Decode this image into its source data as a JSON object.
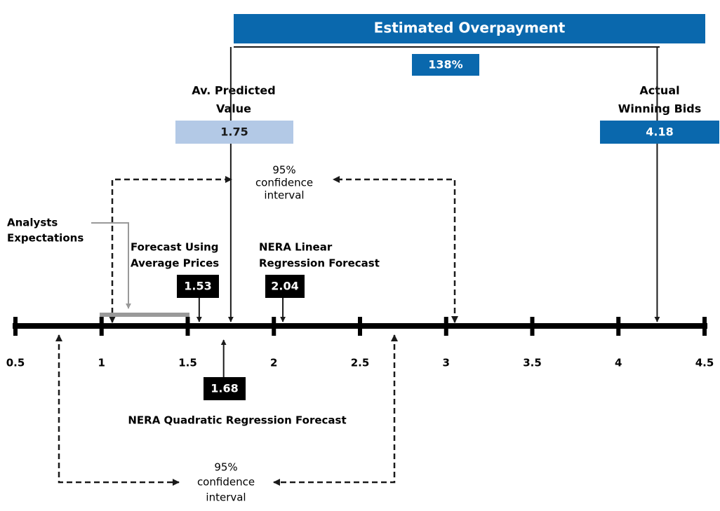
{
  "title": "Estimated Overpayment",
  "overpayment": "138%",
  "predicted": {
    "label": [
      "Av. Predicted",
      "Value"
    ],
    "value": 1.75
  },
  "actual": {
    "label": [
      "Actual",
      "Winning Bids"
    ],
    "value": 4.18
  },
  "upper_interval": [
    "95%",
    "confidence",
    "interval"
  ],
  "analysts": [
    "Analysts",
    "Expectations"
  ],
  "average_prices": {
    "label": [
      "Forecast Using",
      "Average Prices"
    ],
    "value": 1.53
  },
  "linear": {
    "label": [
      "NERA Linear",
      "Regression Forecast"
    ],
    "value": 2.04
  },
  "quadratic": {
    "label": "NERA Quadratic Regression Forecast",
    "value": 1.68
  },
  "lower_interval": [
    "95%",
    "confidence",
    "interval"
  ],
  "axis": {
    "ticks": [
      0.5,
      1,
      1.5,
      2,
      2.5,
      3,
      3.5,
      4,
      4.5
    ]
  }
}
